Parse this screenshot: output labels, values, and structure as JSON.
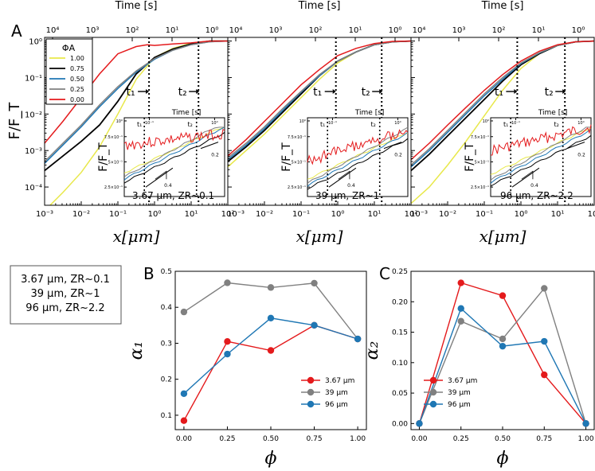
{
  "figure": {
    "panel_a_label": "A",
    "panel_b_label": "B",
    "panel_c_label": "C"
  },
  "colors": {
    "phi_1_00": "#e8e84a",
    "phi_0_75": "#000000",
    "phi_0_50": "#1f77b4",
    "phi_0_25": "#808080",
    "phi_0_00": "#e41a1c",
    "red": "#e41a1c",
    "gray": "#808080",
    "blue": "#1f77b4"
  },
  "chart_data": [
    {
      "type": "line",
      "panel": "A",
      "subpanel": "left",
      "xlabel": "x[μm]",
      "ylabel": "F/F_T",
      "top_axis_label": "Time [s]",
      "x_ticks": [
        "10⁻³",
        "10⁻²",
        "10⁻¹",
        "10⁰",
        "10¹",
        "10²"
      ],
      "y_ticks": [
        "10⁻⁴",
        "10⁻³",
        "10⁻²",
        "10⁻¹",
        "10⁰"
      ],
      "top_ticks": [
        "10⁴",
        "10³",
        "10²",
        "10¹",
        "10⁰"
      ],
      "xlim_log10": [
        -3,
        2
      ],
      "ylim_log10": [
        -4.5,
        0.1
      ],
      "t1_label": "t₁",
      "t2_label": "t₂",
      "t1_x_log10": -0.15,
      "t2_x_log10": 1.2,
      "annotation": "3.67 μm, ZR~0.1",
      "annotation_color": "#e41a1c",
      "legend_title": "ΦA",
      "series": [
        {
          "name": "1.00",
          "color": "#e8e84a",
          "x_log10": [
            -3,
            -2.5,
            -2,
            -1.5,
            -1,
            -0.5,
            0,
            0.5,
            1,
            1.5,
            2
          ],
          "y_log10": [
            -4.65,
            -4.15,
            -3.6,
            -2.9,
            -2.0,
            -1.05,
            -0.45,
            -0.2,
            -0.06,
            0,
            0
          ]
        },
        {
          "name": "0.75",
          "color": "#000000",
          "x_log10": [
            -3,
            -2.5,
            -2,
            -1.5,
            -1,
            -0.5,
            0,
            0.5,
            1,
            1.5,
            2
          ],
          "y_log10": [
            -3.55,
            -3.15,
            -2.75,
            -2.3,
            -1.65,
            -0.9,
            -0.45,
            -0.22,
            -0.08,
            0,
            0
          ]
        },
        {
          "name": "0.50",
          "color": "#1f77b4",
          "x_log10": [
            -3,
            -2.5,
            -2,
            -1.5,
            -1,
            -0.5,
            0,
            0.5,
            1,
            1.5,
            2
          ],
          "y_log10": [
            -3.35,
            -2.85,
            -2.35,
            -1.8,
            -1.3,
            -0.85,
            -0.5,
            -0.25,
            -0.1,
            -0.02,
            0
          ]
        },
        {
          "name": "0.25",
          "color": "#808080",
          "x_log10": [
            -3,
            -2.5,
            -2,
            -1.5,
            -1,
            -0.5,
            0,
            0.5,
            1,
            1.5,
            2
          ],
          "y_log10": [
            -3.3,
            -2.8,
            -2.3,
            -1.75,
            -1.25,
            -0.82,
            -0.48,
            -0.25,
            -0.1,
            -0.02,
            0
          ]
        },
        {
          "name": "0.00",
          "color": "#e41a1c",
          "x_log10": [
            -3,
            -2.5,
            -2,
            -1.5,
            -1,
            -0.5,
            -0.2,
            0,
            0.5,
            1,
            1.5,
            2
          ],
          "y_log10": [
            -2.8,
            -2.2,
            -1.55,
            -0.9,
            -0.35,
            -0.15,
            -0.1,
            -0.12,
            -0.08,
            -0.05,
            0,
            0
          ]
        }
      ]
    },
    {
      "type": "line",
      "panel": "A",
      "subpanel": "middle",
      "xlabel": "x[μm]",
      "ylabel": "F/F_T",
      "top_axis_label": "Time [s]",
      "x_ticks": [
        "10⁻³",
        "10⁻²",
        "10⁻¹",
        "10⁰",
        "10¹",
        "10²"
      ],
      "y_ticks": [
        "10⁻⁴",
        "10⁻³",
        "10⁻²",
        "10⁻¹",
        "10⁰"
      ],
      "top_ticks": [
        "10⁴",
        "10³",
        "10²",
        "10¹",
        "10⁰"
      ],
      "xlim_log10": [
        -3,
        2
      ],
      "ylim_log10": [
        -4.5,
        0.1
      ],
      "t1_label": "t₁",
      "t2_label": "t₂",
      "t1_x_log10": -0.05,
      "t2_x_log10": 1.2,
      "annotation": "39 μm, ZR~1",
      "annotation_color": "#808080",
      "series": [
        {
          "name": "1.00",
          "color": "#e8e84a",
          "x_log10": [
            -3,
            -2.5,
            -2,
            -1.5,
            -1,
            -0.5,
            0,
            0.5,
            1,
            1.5,
            2
          ],
          "y_log10": [
            -3.45,
            -3.0,
            -2.55,
            -2.05,
            -1.55,
            -1.05,
            -0.6,
            -0.3,
            -0.1,
            -0.02,
            0
          ]
        },
        {
          "name": "0.75",
          "color": "#000000",
          "x_log10": [
            -3,
            -2.5,
            -2,
            -1.5,
            -1,
            -0.5,
            0,
            0.5,
            1,
            1.5,
            2
          ],
          "y_log10": [
            -3.3,
            -2.9,
            -2.45,
            -1.95,
            -1.45,
            -0.95,
            -0.55,
            -0.3,
            -0.1,
            -0.02,
            0
          ]
        },
        {
          "name": "0.50",
          "color": "#1f77b4",
          "x_log10": [
            -3,
            -2.5,
            -2,
            -1.5,
            -1,
            -0.5,
            0,
            0.5,
            1,
            1.5,
            2
          ],
          "y_log10": [
            -3.25,
            -2.85,
            -2.4,
            -1.9,
            -1.4,
            -0.95,
            -0.55,
            -0.3,
            -0.1,
            -0.02,
            0
          ]
        },
        {
          "name": "0.25",
          "color": "#808080",
          "x_log10": [
            -3,
            -2.5,
            -2,
            -1.5,
            -1,
            -0.5,
            0,
            0.5,
            1,
            1.5,
            2
          ],
          "y_log10": [
            -3.2,
            -2.8,
            -2.35,
            -1.85,
            -1.38,
            -0.92,
            -0.55,
            -0.3,
            -0.1,
            -0.02,
            0
          ]
        },
        {
          "name": "0.00",
          "color": "#e41a1c",
          "x_log10": [
            -3,
            -2.5,
            -2,
            -1.5,
            -1,
            -0.5,
            0,
            0.5,
            1,
            1.5,
            2
          ],
          "y_log10": [
            -3.15,
            -2.7,
            -2.2,
            -1.7,
            -1.2,
            -0.78,
            -0.4,
            -0.2,
            -0.07,
            -0.01,
            0
          ]
        }
      ]
    },
    {
      "type": "line",
      "panel": "A",
      "subpanel": "right",
      "xlabel": "x[μm]",
      "ylabel": "F/F_T",
      "top_axis_label": "Time [s]",
      "x_ticks": [
        "10⁻³",
        "10⁻²",
        "10⁻¹",
        "10⁰",
        "10¹",
        "10²"
      ],
      "y_ticks": [
        "10⁻⁴",
        "10⁻³",
        "10⁻²",
        "10⁻¹",
        "10⁰"
      ],
      "top_ticks": [
        "10⁴",
        "10³",
        "10²",
        "10¹",
        "10⁰"
      ],
      "xlim_log10": [
        -3,
        2
      ],
      "ylim_log10": [
        -4.5,
        0.1
      ],
      "t1_label": "t₁",
      "t2_label": "t₂",
      "t1_x_log10": -0.1,
      "t2_x_log10": 1.2,
      "annotation": "96 μm, ZR~2.2",
      "annotation_color": "#1f77b4",
      "series": [
        {
          "name": "1.00",
          "color": "#e8e84a",
          "x_log10": [
            -3,
            -2.5,
            -2,
            -1.5,
            -1,
            -0.5,
            0,
            0.5,
            1,
            1.5,
            2
          ],
          "y_log10": [
            -4.45,
            -4.0,
            -3.4,
            -2.75,
            -2.05,
            -1.35,
            -0.75,
            -0.35,
            -0.12,
            -0.02,
            0
          ]
        },
        {
          "name": "0.75",
          "color": "#000000",
          "x_log10": [
            -3,
            -2.5,
            -2,
            -1.5,
            -1,
            -0.5,
            0,
            0.5,
            1,
            1.5,
            2
          ],
          "y_log10": [
            -3.55,
            -3.1,
            -2.6,
            -2.1,
            -1.6,
            -1.1,
            -0.65,
            -0.35,
            -0.12,
            -0.02,
            0
          ]
        },
        {
          "name": "0.50",
          "color": "#1f77b4",
          "x_log10": [
            -3,
            -2.5,
            -2,
            -1.5,
            -1,
            -0.5,
            0,
            0.5,
            1,
            1.5,
            2
          ],
          "y_log10": [
            -3.45,
            -3.0,
            -2.5,
            -2.0,
            -1.5,
            -1.05,
            -0.62,
            -0.33,
            -0.12,
            -0.02,
            0
          ]
        },
        {
          "name": "0.25",
          "color": "#808080",
          "x_log10": [
            -3,
            -2.5,
            -2,
            -1.5,
            -1,
            -0.5,
            0,
            0.5,
            1,
            1.5,
            2
          ],
          "y_log10": [
            -3.4,
            -2.95,
            -2.45,
            -1.95,
            -1.45,
            -1.0,
            -0.6,
            -0.32,
            -0.12,
            -0.02,
            0
          ]
        },
        {
          "name": "0.00",
          "color": "#e41a1c",
          "x_log10": [
            -3,
            -2.5,
            -2,
            -1.5,
            -1,
            -0.5,
            0,
            0.5,
            1,
            1.5,
            2
          ],
          "y_log10": [
            -3.25,
            -2.8,
            -2.3,
            -1.82,
            -1.35,
            -0.92,
            -0.55,
            -0.28,
            -0.1,
            -0.02,
            0
          ]
        }
      ]
    },
    {
      "type": "line",
      "panel": "B",
      "xlabel": "ϕA",
      "ylabel": "α₁",
      "x_ticks": [
        "0.00",
        "0.25",
        "0.50",
        "0.75",
        "1.00"
      ],
      "y_ticks": [
        "0.1",
        "0.2",
        "0.3",
        "0.4",
        "0.5"
      ],
      "xlim": [
        -0.05,
        1.05
      ],
      "ylim": [
        0.06,
        0.5
      ],
      "x": [
        0,
        0.25,
        0.5,
        0.75,
        1.0
      ],
      "series": [
        {
          "name": "3.67 μm",
          "color": "#e41a1c",
          "values": [
            0.085,
            0.305,
            0.28,
            0.35,
            0.312
          ]
        },
        {
          "name": "39 μm",
          "color": "#808080",
          "values": [
            0.387,
            0.468,
            0.455,
            0.467,
            0.312
          ]
        },
        {
          "name": "96 μm",
          "color": "#1f77b4",
          "values": [
            0.16,
            0.27,
            0.37,
            0.35,
            0.312
          ]
        }
      ],
      "legend": "lower-right"
    },
    {
      "type": "line",
      "panel": "C",
      "xlabel": "ϕA",
      "ylabel": "α₂",
      "x_ticks": [
        "0.00",
        "0.25",
        "0.50",
        "0.75",
        "1.00"
      ],
      "y_ticks": [
        "0.00",
        "0.05",
        "0.10",
        "0.15",
        "0.20",
        "0.25"
      ],
      "xlim": [
        -0.05,
        1.05
      ],
      "ylim": [
        -0.01,
        0.25
      ],
      "x": [
        0,
        0.25,
        0.5,
        0.75,
        1.0
      ],
      "series": [
        {
          "name": "3.67 μm",
          "color": "#e41a1c",
          "values": [
            0.0,
            0.231,
            0.21,
            0.08,
            0.0
          ]
        },
        {
          "name": "39 μm",
          "color": "#808080",
          "values": [
            0.0,
            0.168,
            0.139,
            0.222,
            0.0
          ]
        },
        {
          "name": "96 μm",
          "color": "#1f77b4",
          "values": [
            0.0,
            0.189,
            0.127,
            0.135,
            0.0
          ]
        }
      ],
      "legend": "lower-left"
    }
  ],
  "inset": {
    "ylabel": "F/F_T",
    "top_axis_label": "Time [s]",
    "y_ticks": [
      "2.5×10⁻¹",
      "5×10⁻¹",
      "7.5×10⁻¹",
      "10⁰"
    ],
    "top_ticks": [
      "10⁻¹",
      "10⁰"
    ],
    "slope_04": "0.4",
    "slope_02": "0.2",
    "t1_label": "t₁",
    "t2_label": "t₂"
  },
  "side_legend": [
    {
      "text": "3.67 μm, ZR~0.1",
      "color": "#e41a1c"
    },
    {
      "text": "39 μm, ZR~1",
      "color": "#808080"
    },
    {
      "text": "96 μm, ZR~2.2",
      "color": "#1f77b4"
    }
  ]
}
